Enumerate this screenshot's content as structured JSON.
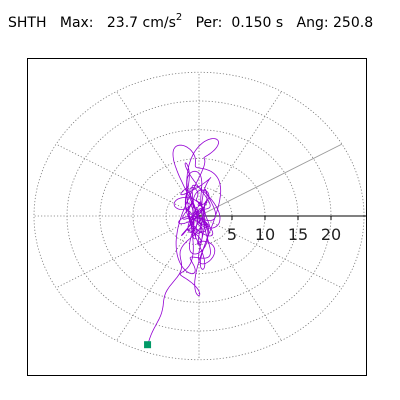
{
  "header": {
    "station": "SHTH",
    "max_label": "Max:",
    "max_value": "23.7",
    "max_unit": "cm/s",
    "max_unit_exp": "2",
    "per_label": "Per:",
    "per_value": "0.150 s",
    "ang_label": "Ang:",
    "ang_value": "250.8"
  },
  "chart_data": {
    "type": "polar-hodogram",
    "title": "",
    "radial_ticks": [
      5,
      10,
      15,
      20
    ],
    "tick_labels": [
      "5",
      "10",
      "15",
      "20"
    ],
    "rings": [
      5,
      10,
      15,
      20,
      25
    ],
    "spokes_deg": [
      0,
      30,
      60,
      90,
      120,
      150,
      180,
      210,
      240,
      270,
      300,
      330
    ],
    "highlight_spoke_deg": 30,
    "peak": {
      "value": 23.7,
      "angle_deg": 250.8
    },
    "trace_color": "#9400d3",
    "marker_color": "#009966",
    "grid": true
  }
}
